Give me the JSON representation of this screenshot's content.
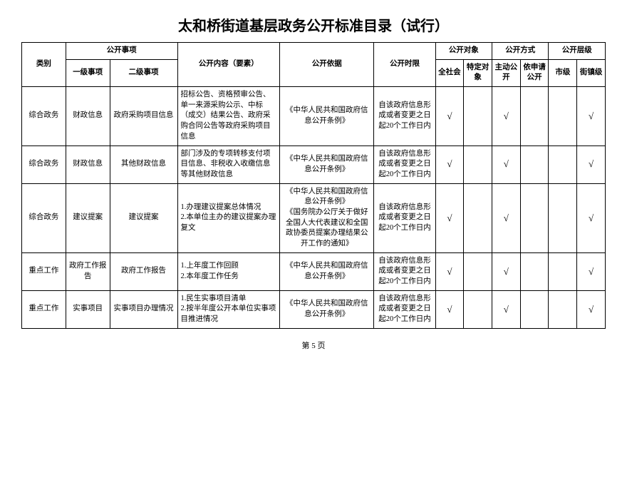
{
  "title": "太和桥街道基层政务公开标准目录（试行）",
  "headers": {
    "category": "类别",
    "matters": "公开事项",
    "level1": "一级事项",
    "level2": "二级事项",
    "content": "公开内容（要素）",
    "basis": "公开依据",
    "timeLimit": "公开时限",
    "targetGroup": "公开对象",
    "allSociety": "全社会",
    "specific": "特定对象",
    "methodGroup": "公开方式",
    "active": "主动公开",
    "onRequest": "依申请公开",
    "levelGroup": "公开层级",
    "city": "市级",
    "town": "街镇级"
  },
  "rows": [
    {
      "category": "综合政务",
      "level1": "财政信息",
      "level2": "政府采购项目信息",
      "content": "招标公告、资格预审公告、单一来源采购公示、中标（成交）结果公告、政府采购合同公告等政府采购项目信息",
      "basis": "《中华人民共和国政府信息公开条例》",
      "timeLimit": "自该政府信息形成或者变更之日起20个工作日内",
      "allSociety": "√",
      "specific": "",
      "active": "√",
      "onRequest": "",
      "city": "",
      "town": "√"
    },
    {
      "category": "综合政务",
      "level1": "财政信息",
      "level2": "其他财政信息",
      "content": "部门涉及的专项转移支付项目信息、非税收入收缴信息等其他财政信息",
      "basis": "《中华人民共和国政府信息公开条例》",
      "timeLimit": "自该政府信息形成或者变更之日起20个工作日内",
      "allSociety": "√",
      "specific": "",
      "active": "√",
      "onRequest": "",
      "city": "",
      "town": "√"
    },
    {
      "category": "综合政务",
      "level1": "建议提案",
      "level2": "建议提案",
      "content": "1.办理建议提案总体情况\n2.本单位主办的建议提案办理复文",
      "basis": "《中华人民共和国政府信息公开条例》\n《国务院办公厅关于做好全国人大代表建议和全国政协委员提案办理结果公开工作的通知》",
      "timeLimit": "自该政府信息形成或者变更之日起20个工作日内",
      "allSociety": "√",
      "specific": "",
      "active": "√",
      "onRequest": "",
      "city": "",
      "town": "√"
    },
    {
      "category": "重点工作",
      "level1": "政府工作报告",
      "level2": "政府工作报告",
      "content": "1.上年度工作回顾\n2.本年度工作任务",
      "basis": "《中华人民共和国政府信息公开条例》",
      "timeLimit": "自该政府信息形成或者变更之日起20个工作日内",
      "allSociety": "√",
      "specific": "",
      "active": "√",
      "onRequest": "",
      "city": "",
      "town": "√"
    },
    {
      "category": "重点工作",
      "level1": "实事项目",
      "level2": "实事项目办理情况",
      "content": "1.民生实事项目清单\n2.按半年度公开本单位实事项目推进情况",
      "basis": "《中华人民共和国政府信息公开条例》",
      "timeLimit": "自该政府信息形成或者变更之日起20个工作日内",
      "allSociety": "√",
      "specific": "",
      "active": "√",
      "onRequest": "",
      "city": "",
      "town": "√"
    }
  ],
  "footer": "第 5 页"
}
